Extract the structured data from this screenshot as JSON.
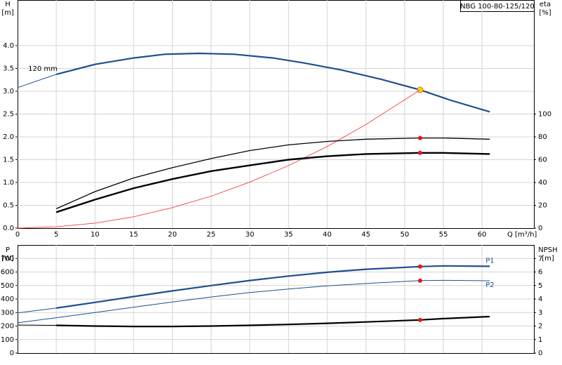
{
  "chart_data": [
    {
      "type": "line",
      "title": "NBG 100-80-125/120",
      "ylabel": "H",
      "yunit": "[m]",
      "y2label": "eta",
      "y2unit": "[%]",
      "xlabel": "Q [m³/h]",
      "xlim": [
        0,
        66.7
      ],
      "xticks": [
        0,
        5,
        10,
        15,
        20,
        25,
        30,
        35,
        40,
        45,
        50,
        55,
        60
      ],
      "ylim": [
        0,
        5
      ],
      "yticks": [
        {
          "value": 0,
          "label": "0.0"
        },
        0.5,
        {
          "value": 1,
          "label": "1.0"
        },
        1.5,
        {
          "value": 2,
          "label": "2.0"
        },
        2.5,
        {
          "value": 3,
          "label": "3.0"
        },
        3.5,
        {
          "value": 4,
          "label": "4.0"
        }
      ],
      "y2lim": [
        0,
        200
      ],
      "y2ticks": [
        0,
        20,
        40,
        60,
        80,
        100
      ],
      "grid": true,
      "duty_q": 52,
      "series": [
        {
          "color": "#1f4f8f",
          "width": 1,
          "x": [
            0,
            5
          ],
          "values": [
            3.08,
            3.37
          ]
        },
        {
          "name": "120 mm",
          "label_at": "start",
          "color": "#1f4f8f",
          "width": 2.2,
          "marker_color": "#ffd21f",
          "x": [
            5,
            10,
            15,
            19,
            23.5,
            28,
            33,
            37,
            42,
            47,
            52,
            56,
            61
          ],
          "values": [
            3.37,
            3.59,
            3.73,
            3.81,
            3.83,
            3.81,
            3.73,
            3.62,
            3.46,
            3.26,
            3.03,
            2.8,
            2.55
          ]
        },
        {
          "color": "#f04040",
          "width": 0.9,
          "x": [
            0,
            5,
            10,
            15,
            20,
            25,
            30,
            35,
            40,
            45,
            52
          ],
          "values": [
            0,
            0.03,
            0.11,
            0.25,
            0.45,
            0.7,
            1.01,
            1.37,
            1.79,
            2.27,
            3.03
          ]
        },
        {
          "axis": "y2",
          "color": "#000000",
          "width": 1.3,
          "marker_color": "#ee1111",
          "x": [
            5,
            10,
            15,
            20,
            25,
            30,
            35,
            40,
            45,
            52,
            55,
            61
          ],
          "values": [
            17,
            32,
            44,
            53,
            61,
            68,
            73,
            76,
            78,
            79,
            79,
            78
          ]
        },
        {
          "axis": "y2",
          "color": "#000000",
          "width": 2.4,
          "marker_color": "#ee1111",
          "x": [
            5,
            10,
            15,
            20,
            25,
            30,
            35,
            40,
            45,
            52,
            55,
            61
          ],
          "values": [
            14,
            25,
            35,
            43,
            50,
            55,
            60,
            63,
            65,
            66,
            66,
            65
          ]
        }
      ]
    },
    {
      "type": "line",
      "ylabel": "P",
      "yunit": "[W]",
      "y2label": "NPSH",
      "y2unit": "[m]",
      "ylim": [
        0,
        800
      ],
      "yticks": [
        0,
        100,
        200,
        300,
        400,
        500,
        600,
        700
      ],
      "y2lim": [
        0,
        8
      ],
      "y2ticks": [
        0,
        1,
        2,
        3,
        4,
        5,
        6,
        7
      ],
      "grid": true,
      "duty_q": 52,
      "series": [
        {
          "color": "#1f4f8f",
          "width": 1,
          "x": [
            0,
            5
          ],
          "values": [
            297,
            333
          ]
        },
        {
          "name": "P1",
          "label_at": "end",
          "color": "#1f4f8f",
          "width": 2.2,
          "marker_color": "#ee1111",
          "x": [
            5,
            10,
            15,
            20,
            25,
            30,
            35,
            40,
            45,
            52,
            55,
            61
          ],
          "values": [
            333,
            375,
            418,
            460,
            500,
            537,
            570,
            598,
            620,
            640,
            645,
            642
          ]
        },
        {
          "name": "P2",
          "label_at": "end",
          "color": "#1f4f8f",
          "width": 1,
          "marker_color": "#ee1111",
          "x": [
            0,
            5,
            10,
            15,
            20,
            25,
            30,
            35,
            40,
            45,
            52,
            55,
            61
          ],
          "values": [
            224,
            262,
            300,
            340,
            378,
            415,
            448,
            474,
            497,
            515,
            536,
            538,
            535
          ]
        },
        {
          "axis": "y2",
          "color": "#000000",
          "width": 1,
          "x": [
            0,
            5
          ],
          "values": [
            2.08,
            2.05
          ]
        },
        {
          "axis": "y2",
          "color": "#000000",
          "width": 2.2,
          "marker_color": "#ee1111",
          "x": [
            5,
            10,
            15,
            20,
            25,
            30,
            35,
            40,
            45,
            52,
            55,
            61
          ],
          "values": [
            2.05,
            2.0,
            1.97,
            1.97,
            2.0,
            2.05,
            2.12,
            2.2,
            2.3,
            2.45,
            2.55,
            2.7
          ]
        }
      ]
    }
  ]
}
